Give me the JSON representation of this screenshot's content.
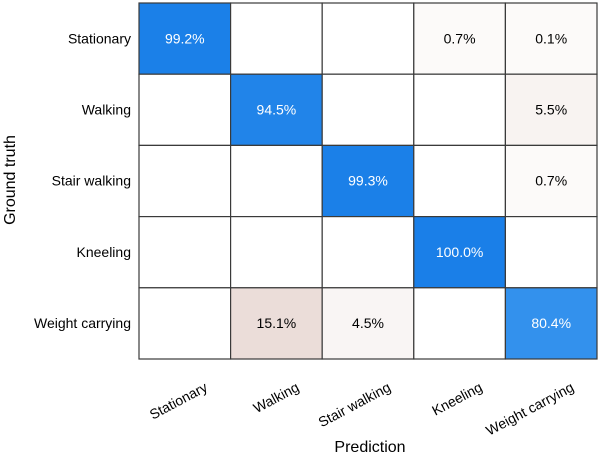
{
  "chart_data": {
    "type": "heatmap",
    "title": "",
    "xlabel": "Prediction",
    "ylabel": "Ground truth",
    "x_categories": [
      "Stationary",
      "Walking",
      "Stair walking",
      "Kneeling",
      "Weight carrying"
    ],
    "y_categories": [
      "Stationary",
      "Walking",
      "Stair walking",
      "Kneeling",
      "Weight carrying"
    ],
    "values": [
      [
        99.2,
        null,
        null,
        0.7,
        0.1
      ],
      [
        null,
        94.5,
        null,
        null,
        5.5
      ],
      [
        null,
        null,
        99.3,
        null,
        0.7
      ],
      [
        null,
        null,
        null,
        100.0,
        null
      ],
      [
        null,
        15.1,
        4.5,
        null,
        80.4
      ]
    ],
    "cell_labels": [
      [
        "99.2%",
        "",
        "",
        "0.7%",
        "0.1%"
      ],
      [
        "",
        "94.5%",
        "",
        "",
        "5.5%"
      ],
      [
        "",
        "",
        "99.3%",
        "",
        "0.7%"
      ],
      [
        "",
        "",
        "",
        "100.0%",
        ""
      ],
      [
        "",
        "15.1%",
        "4.5%",
        "",
        "80.4%"
      ]
    ],
    "grid": true,
    "legend": "none",
    "colors": {
      "diagonal_high": "#1a7fe8",
      "diagonal_mid": "#3a96ee",
      "offdiag_tint": "#c9a59a",
      "empty": "#ffffff",
      "border": "#3a3a3a",
      "label_on_dark": "#ffffff",
      "label_on_light": "#000000"
    }
  }
}
